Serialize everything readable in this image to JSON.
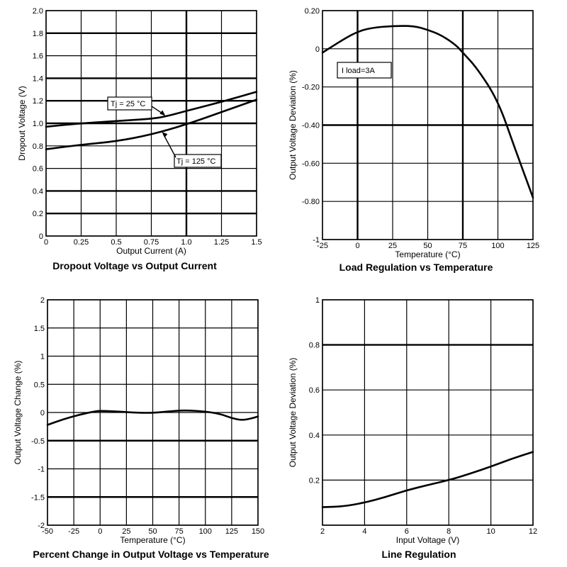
{
  "chart_data": [
    {
      "id": "dropout",
      "type": "line",
      "title": "Dropout Voltage vs Output Current",
      "xlabel": "Output Current (A)",
      "ylabel": "Dropout Voltage (V)",
      "xlim": [
        0,
        1.5
      ],
      "ylim": [
        0,
        2.0
      ],
      "xticks": [
        0,
        0.25,
        0.5,
        0.75,
        1.0,
        1.25,
        1.5
      ],
      "xtick_labels": [
        "0",
        "0.25",
        "0.5",
        "0.75",
        "1.0",
        "1.25",
        "1.5"
      ],
      "yticks": [
        0,
        0.2,
        0.4,
        0.6,
        0.8,
        1.0,
        1.2,
        1.4,
        1.6,
        1.8,
        2.0
      ],
      "ytick_labels": [
        "0",
        "0.2",
        "0.4",
        "0.6",
        "0.8",
        "1.0",
        "1.2",
        "1.4",
        "1.6",
        "1.8",
        "2.0"
      ],
      "grid": true,
      "series": [
        {
          "name": "Tj = 25 °C",
          "x": [
            0,
            0.25,
            0.5,
            0.75,
            0.85,
            1.0,
            1.25,
            1.5
          ],
          "y": [
            0.97,
            1.0,
            1.02,
            1.04,
            1.06,
            1.11,
            1.19,
            1.28
          ]
        },
        {
          "name": "Tj = 125 °C",
          "x": [
            0,
            0.25,
            0.5,
            0.75,
            1.0,
            1.25,
            1.5
          ],
          "y": [
            0.77,
            0.81,
            0.84,
            0.9,
            0.99,
            1.1,
            1.21
          ]
        }
      ],
      "annotations": [
        {
          "text": "Tj = 25 °C",
          "series": 0,
          "at_x": 0.85
        },
        {
          "text": "Tj = 125 °C",
          "series": 1,
          "at_x": 0.82
        }
      ]
    },
    {
      "id": "load",
      "type": "line",
      "title": "Load Regulation vs Temperature",
      "xlabel": "Temperature (°C)",
      "ylabel": "Output Voltage Deviation (%)",
      "xlim": [
        -25,
        125
      ],
      "ylim": [
        -1.0,
        0.2
      ],
      "xticks": [
        -25,
        0,
        25,
        50,
        75,
        100,
        125
      ],
      "xtick_labels": [
        "-25",
        "0",
        "25",
        "50",
        "75",
        "100",
        "125"
      ],
      "yticks": [
        -1.0,
        -0.8,
        -0.6,
        -0.4,
        -0.2,
        0,
        0.2
      ],
      "ytick_labels": [
        "-1",
        "-0.80",
        "-0.60",
        "-0.40",
        "-0.20",
        "0",
        "0.20"
      ],
      "grid": true,
      "series": [
        {
          "name": "",
          "x": [
            -25,
            -10,
            0,
            10,
            25,
            40,
            50,
            60,
            70,
            75,
            85,
            100,
            112,
            125
          ],
          "y": [
            -0.02,
            0.05,
            0.09,
            0.11,
            0.12,
            0.12,
            0.1,
            0.07,
            0.02,
            -0.02,
            -0.1,
            -0.27,
            -0.52,
            -0.78
          ]
        }
      ],
      "annotations": [
        {
          "text": "I load=3A"
        }
      ]
    },
    {
      "id": "percent",
      "type": "line",
      "title": "Percent Change in Output Voltage vs Temperature",
      "xlabel": "Temperature (°C)",
      "ylabel": "Output Voltage Change (%)",
      "xlim": [
        -50,
        150
      ],
      "ylim": [
        -2,
        2
      ],
      "xticks": [
        -50,
        -25,
        0,
        25,
        50,
        75,
        100,
        125,
        150
      ],
      "xtick_labels": [
        "-50",
        "-25",
        "0",
        "25",
        "50",
        "75",
        "100",
        "125",
        "150"
      ],
      "yticks": [
        -2,
        -1.5,
        -1,
        -0.5,
        0,
        0.5,
        1,
        1.5,
        2
      ],
      "ytick_labels": [
        "-2",
        "-1.5",
        "-1",
        "-0.5",
        "0",
        "0.5",
        "1",
        "1.5",
        "2"
      ],
      "grid": true,
      "series": [
        {
          "name": "",
          "x": [
            -50,
            -35,
            -20,
            -5,
            0,
            15,
            30,
            50,
            65,
            80,
            100,
            115,
            125,
            135,
            145,
            150
          ],
          "y": [
            -0.22,
            -0.12,
            -0.04,
            0.02,
            0.03,
            0.02,
            0.0,
            -0.01,
            0.02,
            0.04,
            0.02,
            -0.03,
            -0.1,
            -0.14,
            -0.1,
            -0.07
          ]
        }
      ]
    },
    {
      "id": "line",
      "type": "line",
      "title": "Line Regulation",
      "xlabel": "Input Voltage (V)",
      "ylabel": "Output Voltage Deviation (%)",
      "xlim": [
        2,
        12
      ],
      "ylim": [
        0,
        1
      ],
      "xticks": [
        2,
        4,
        6,
        8,
        10,
        12
      ],
      "xtick_labels": [
        "2",
        "4",
        "6",
        "8",
        "10",
        "12"
      ],
      "yticks": [
        0,
        0.2,
        0.4,
        0.6,
        0.8,
        1
      ],
      "ytick_labels": [
        "",
        "0.2",
        "0.4",
        "0.6",
        "0.8",
        "1"
      ],
      "grid": true,
      "series": [
        {
          "name": "",
          "x": [
            2,
            3,
            4,
            5,
            6,
            7,
            8,
            9,
            10,
            11,
            12
          ],
          "y": [
            0.08,
            0.083,
            0.1,
            0.125,
            0.155,
            0.178,
            0.2,
            0.228,
            0.26,
            0.295,
            0.325
          ]
        }
      ]
    }
  ]
}
